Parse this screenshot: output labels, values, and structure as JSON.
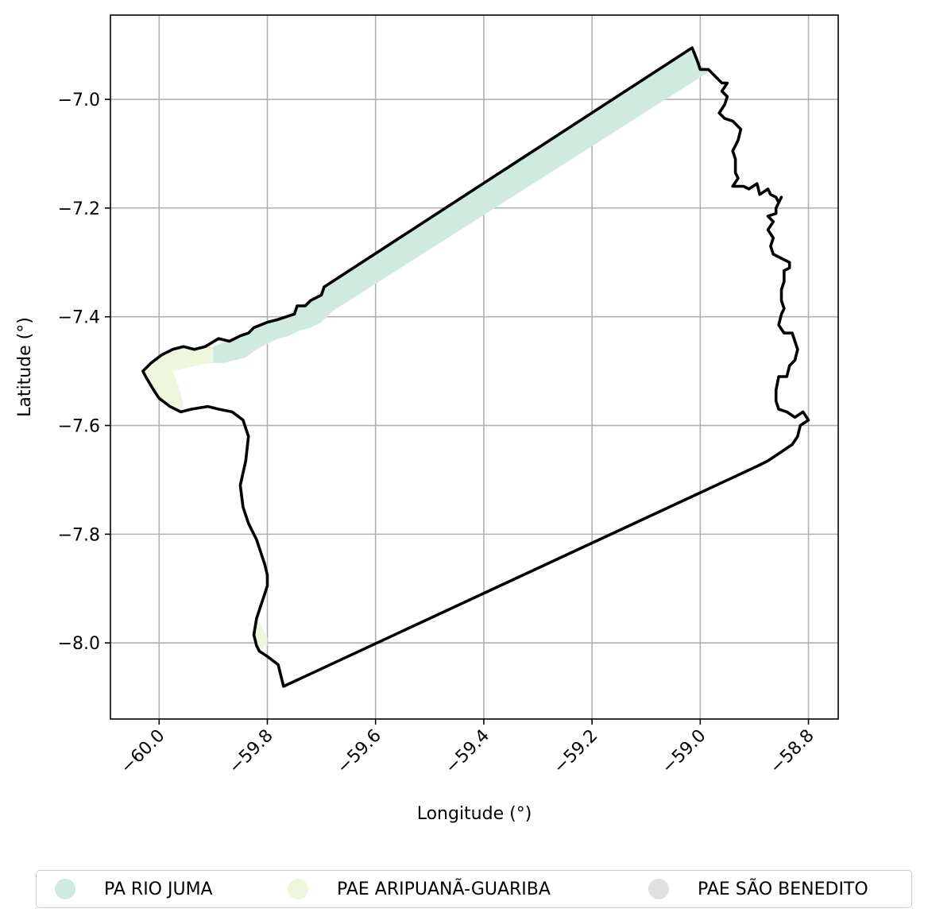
{
  "chart_data": {
    "type": "map",
    "xlabel": "Longitude (°)",
    "ylabel": "Latitude (°)",
    "xlim": [
      -60.09,
      -58.745
    ],
    "ylim": [
      -8.14,
      -6.845
    ],
    "xticks": [
      -60.0,
      -59.8,
      -59.6,
      -59.4,
      -59.2,
      -59.0,
      -58.8
    ],
    "xtick_labels": [
      "−60.0",
      "−59.8",
      "−59.6",
      "−59.4",
      "−59.2",
      "−59.0",
      "−58.8"
    ],
    "yticks": [
      -7.0,
      -7.2,
      -7.4,
      -7.6,
      -7.8,
      -8.0
    ],
    "ytick_labels": [
      "−7.0",
      "−7.2",
      "−7.4",
      "−7.6",
      "−7.8",
      "−8.0"
    ],
    "grid": true,
    "legend_position": "bottom",
    "legend": [
      {
        "name": "PA RIO JUMA",
        "color": "#cfeadf"
      },
      {
        "name": "PAE ARIPUANÃ-GUARIBA",
        "color": "#eef7dd"
      },
      {
        "name": "PAE SÃO BENEDITO",
        "color": "#e0e0e0"
      }
    ],
    "boundary": [
      [
        -59.015,
        -6.905
      ],
      [
        -59.005,
        -6.93
      ],
      [
        -59.0,
        -6.945
      ],
      [
        -58.985,
        -6.945
      ],
      [
        -58.97,
        -6.96
      ],
      [
        -58.96,
        -6.97
      ],
      [
        -58.95,
        -6.97
      ],
      [
        -58.96,
        -6.985
      ],
      [
        -58.95,
        -6.995
      ],
      [
        -58.955,
        -7.01
      ],
      [
        -58.965,
        -7.025
      ],
      [
        -58.955,
        -7.035
      ],
      [
        -58.94,
        -7.04
      ],
      [
        -58.925,
        -7.055
      ],
      [
        -58.93,
        -7.075
      ],
      [
        -58.94,
        -7.095
      ],
      [
        -58.935,
        -7.11
      ],
      [
        -58.935,
        -7.135
      ],
      [
        -58.93,
        -7.145
      ],
      [
        -58.94,
        -7.16
      ],
      [
        -58.92,
        -7.16
      ],
      [
        -58.91,
        -7.165
      ],
      [
        -58.895,
        -7.155
      ],
      [
        -58.89,
        -7.175
      ],
      [
        -58.875,
        -7.165
      ],
      [
        -58.87,
        -7.175
      ],
      [
        -58.86,
        -7.18
      ],
      [
        -58.855,
        -7.19
      ],
      [
        -58.85,
        -7.18
      ],
      [
        -58.86,
        -7.2
      ],
      [
        -58.86,
        -7.21
      ],
      [
        -58.875,
        -7.215
      ],
      [
        -58.865,
        -7.225
      ],
      [
        -58.875,
        -7.24
      ],
      [
        -58.865,
        -7.255
      ],
      [
        -58.87,
        -7.27
      ],
      [
        -58.865,
        -7.285
      ],
      [
        -58.845,
        -7.295
      ],
      [
        -58.835,
        -7.3
      ],
      [
        -58.835,
        -7.31
      ],
      [
        -58.845,
        -7.315
      ],
      [
        -58.845,
        -7.335
      ],
      [
        -58.85,
        -7.35
      ],
      [
        -58.85,
        -7.37
      ],
      [
        -58.845,
        -7.385
      ],
      [
        -58.85,
        -7.395
      ],
      [
        -58.855,
        -7.415
      ],
      [
        -58.845,
        -7.43
      ],
      [
        -58.83,
        -7.43
      ],
      [
        -58.825,
        -7.445
      ],
      [
        -58.82,
        -7.46
      ],
      [
        -58.825,
        -7.48
      ],
      [
        -58.835,
        -7.49
      ],
      [
        -58.84,
        -7.51
      ],
      [
        -58.855,
        -7.51
      ],
      [
        -58.86,
        -7.535
      ],
      [
        -58.86,
        -7.555
      ],
      [
        -58.855,
        -7.57
      ],
      [
        -58.84,
        -7.575
      ],
      [
        -58.825,
        -7.585
      ],
      [
        -58.81,
        -7.575
      ],
      [
        -58.8,
        -7.59
      ],
      [
        -58.815,
        -7.6
      ],
      [
        -58.82,
        -7.62
      ],
      [
        -58.83,
        -7.635
      ],
      [
        -58.86,
        -7.655
      ],
      [
        -58.875,
        -7.665
      ],
      [
        -58.895,
        -7.675
      ],
      [
        -59.77,
        -8.08
      ],
      [
        -59.775,
        -8.06
      ],
      [
        -59.78,
        -8.04
      ],
      [
        -59.8,
        -8.025
      ],
      [
        -59.815,
        -8.015
      ],
      [
        -59.82,
        -8.005
      ],
      [
        -59.825,
        -7.985
      ],
      [
        -59.82,
        -7.955
      ],
      [
        -59.81,
        -7.925
      ],
      [
        -59.8,
        -7.895
      ],
      [
        -59.8,
        -7.875
      ],
      [
        -59.805,
        -7.855
      ],
      [
        -59.82,
        -7.81
      ],
      [
        -59.835,
        -7.78
      ],
      [
        -59.845,
        -7.75
      ],
      [
        -59.85,
        -7.71
      ],
      [
        -59.84,
        -7.665
      ],
      [
        -59.835,
        -7.62
      ],
      [
        -59.845,
        -7.59
      ],
      [
        -59.865,
        -7.575
      ],
      [
        -59.89,
        -7.57
      ],
      [
        -59.91,
        -7.565
      ],
      [
        -59.94,
        -7.57
      ],
      [
        -59.96,
        -7.575
      ],
      [
        -59.98,
        -7.565
      ],
      [
        -60.0,
        -7.55
      ],
      [
        -60.01,
        -7.535
      ],
      [
        -60.025,
        -7.51
      ],
      [
        -60.03,
        -7.5
      ],
      [
        -60.015,
        -7.485
      ],
      [
        -59.995,
        -7.47
      ],
      [
        -59.975,
        -7.46
      ],
      [
        -59.955,
        -7.455
      ],
      [
        -59.935,
        -7.46
      ],
      [
        -59.915,
        -7.455
      ],
      [
        -59.89,
        -7.44
      ],
      [
        -59.87,
        -7.445
      ],
      [
        -59.85,
        -7.435
      ],
      [
        -59.835,
        -7.43
      ],
      [
        -59.825,
        -7.42
      ],
      [
        -59.8,
        -7.41
      ],
      [
        -59.78,
        -7.405
      ],
      [
        -59.765,
        -7.4
      ],
      [
        -59.75,
        -7.395
      ],
      [
        -59.745,
        -7.38
      ],
      [
        -59.73,
        -7.38
      ],
      [
        -59.72,
        -7.37
      ],
      [
        -59.71,
        -7.365
      ],
      [
        -59.7,
        -7.36
      ],
      [
        -59.695,
        -7.345
      ],
      [
        -59.015,
        -6.905
      ]
    ],
    "regions": [
      {
        "name": "PA RIO JUMA",
        "color": "#cfeadf",
        "polygon": [
          [
            -59.9,
            -7.455
          ],
          [
            -59.85,
            -7.435
          ],
          [
            -59.835,
            -7.43
          ],
          [
            -59.825,
            -7.42
          ],
          [
            -59.8,
            -7.41
          ],
          [
            -59.765,
            -7.4
          ],
          [
            -59.745,
            -7.38
          ],
          [
            -59.72,
            -7.37
          ],
          [
            -59.695,
            -7.345
          ],
          [
            -59.015,
            -6.905
          ],
          [
            -59.005,
            -6.93
          ],
          [
            -58.985,
            -6.95
          ],
          [
            -59.68,
            -7.39
          ],
          [
            -59.69,
            -7.4
          ],
          [
            -59.7,
            -7.41
          ],
          [
            -59.72,
            -7.42
          ],
          [
            -59.74,
            -7.425
          ],
          [
            -59.76,
            -7.435
          ],
          [
            -59.78,
            -7.44
          ],
          [
            -59.8,
            -7.45
          ],
          [
            -59.82,
            -7.46
          ],
          [
            -59.84,
            -7.475
          ],
          [
            -59.86,
            -7.48
          ],
          [
            -59.88,
            -7.485
          ],
          [
            -59.9,
            -7.485
          ]
        ]
      },
      {
        "name": "PAE ARIPUANÃ-GUARIBA",
        "color": "#eef7dd",
        "polygon": [
          [
            -60.025,
            -7.51
          ],
          [
            -60.03,
            -7.5
          ],
          [
            -60.015,
            -7.485
          ],
          [
            -59.995,
            -7.47
          ],
          [
            -59.975,
            -7.46
          ],
          [
            -59.955,
            -7.455
          ],
          [
            -59.935,
            -7.46
          ],
          [
            -59.915,
            -7.455
          ],
          [
            -59.9,
            -7.455
          ],
          [
            -59.9,
            -7.485
          ],
          [
            -59.93,
            -7.49
          ],
          [
            -59.955,
            -7.495
          ],
          [
            -59.975,
            -7.5
          ],
          [
            -59.965,
            -7.525
          ],
          [
            -59.955,
            -7.56
          ],
          [
            -59.96,
            -7.575
          ],
          [
            -59.98,
            -7.565
          ],
          [
            -60.0,
            -7.55
          ],
          [
            -60.01,
            -7.535
          ]
        ]
      },
      {
        "name": "PAE ARIPUANÃ-GUARIBA",
        "color": "#eef7dd",
        "polygon": [
          [
            -59.825,
            -7.985
          ],
          [
            -59.82,
            -7.955
          ],
          [
            -59.81,
            -7.97
          ],
          [
            -59.8,
            -7.99
          ],
          [
            -59.8,
            -8.005
          ],
          [
            -59.815,
            -8.015
          ],
          [
            -59.82,
            -8.005
          ]
        ]
      }
    ]
  }
}
